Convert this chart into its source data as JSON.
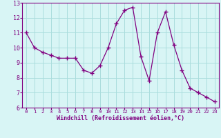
{
  "x": [
    0,
    1,
    2,
    3,
    4,
    5,
    6,
    7,
    8,
    9,
    10,
    11,
    12,
    13,
    14,
    15,
    16,
    17,
    18,
    19,
    20,
    21,
    22,
    23
  ],
  "y": [
    11.0,
    10.0,
    9.7,
    9.5,
    9.3,
    9.3,
    9.3,
    8.5,
    8.3,
    8.8,
    10.0,
    11.6,
    12.5,
    12.7,
    9.4,
    7.8,
    11.0,
    12.4,
    10.2,
    8.5,
    7.3,
    7.0,
    6.7,
    6.4
  ],
  "line_color": "#800080",
  "marker": "+",
  "bg_color": "#d8f5f5",
  "grid_color": "#aadddd",
  "xlabel": "Windchill (Refroidissement éolien,°C)",
  "xlabel_color": "#800080",
  "tick_color": "#800080",
  "spine_color": "#800080",
  "ylim": [
    6,
    13
  ],
  "xlim": [
    -0.5,
    23.5
  ],
  "yticks": [
    6,
    7,
    8,
    9,
    10,
    11,
    12,
    13
  ],
  "xticks": [
    0,
    1,
    2,
    3,
    4,
    5,
    6,
    7,
    8,
    9,
    10,
    11,
    12,
    13,
    14,
    15,
    16,
    17,
    18,
    19,
    20,
    21,
    22,
    23
  ],
  "xlabel_fontsize": 6.0,
  "tick_fontsize_x": 5.2,
  "tick_fontsize_y": 6.0,
  "linewidth": 0.9,
  "markersize": 4.5,
  "markeredgewidth": 1.0
}
